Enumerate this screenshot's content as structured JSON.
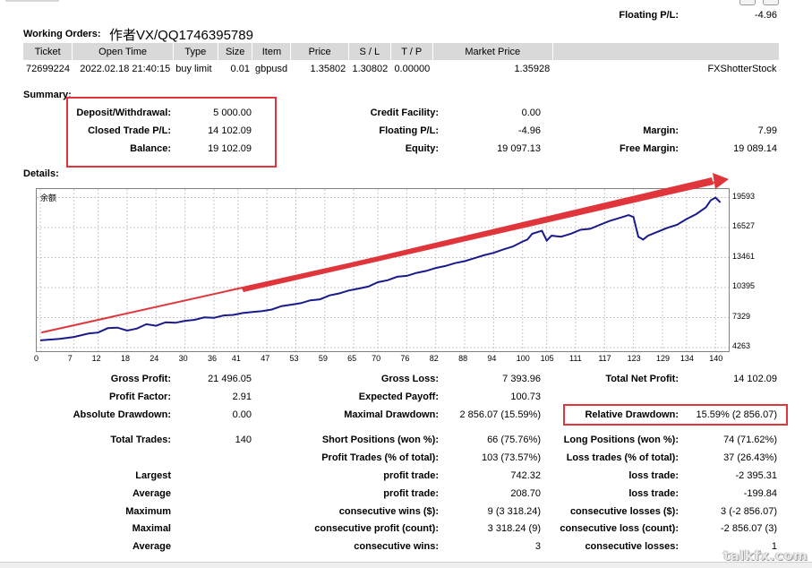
{
  "header": {
    "floating_pl_label": "Floating P/L:",
    "floating_pl_value": "-4.96"
  },
  "orders": {
    "title": "Working Orders:",
    "watermark_contact": "作者VX/QQ1746395789",
    "columns": [
      "Ticket",
      "Open Time",
      "Type",
      "Size",
      "Item",
      "Price",
      "S / L",
      "T / P",
      "Market Price"
    ],
    "row": {
      "ticket": "72699224",
      "open_time": "2022.02.18 21:40:15",
      "type": "buy limit",
      "size": "0.01",
      "item": "gbpusd",
      "price": "1.35802",
      "sl": "1.30802",
      "tp": "0.00000",
      "market_price": "1.35928",
      "comment": "FXShotterStock"
    }
  },
  "summary": {
    "title": "Summary:",
    "deposit_label": "Deposit/Withdrawal:",
    "deposit_value": "5 000.00",
    "closed_label": "Closed Trade P/L:",
    "closed_value": "14 102.09",
    "balance_label": "Balance:",
    "balance_value": "19 102.09",
    "credit_label": "Credit Facility:",
    "credit_value": "0.00",
    "floating_label": "Floating P/L:",
    "floating_value": "-4.96",
    "equity_label": "Equity:",
    "equity_value": "19 097.13",
    "margin_label": "Margin:",
    "margin_value": "7.99",
    "free_margin_label": "Free Margin:",
    "free_margin_value": "19 089.14"
  },
  "details": {
    "title": "Details:"
  },
  "chart_data": {
    "type": "line",
    "title": "余额",
    "x_ticks": [
      "0",
      "7",
      "12",
      "18",
      "24",
      "30",
      "36",
      "41",
      "47",
      "53",
      "59",
      "65",
      "70",
      "76",
      "82",
      "88",
      "94",
      "100",
      "105",
      "111",
      "117",
      "123",
      "129",
      "134",
      "140"
    ],
    "y_ticks": [
      "19593",
      "16527",
      "13461",
      "10395",
      "7329",
      "4263"
    ],
    "xlim": [
      0,
      142
    ],
    "ylim": [
      4263,
      20100
    ],
    "series": [
      {
        "name": "Balance",
        "x": [
          0,
          4,
          7,
          10,
          12,
          14,
          16,
          18,
          20,
          22,
          24,
          26,
          28,
          30,
          32,
          34,
          36,
          38,
          40,
          42,
          44,
          46,
          48,
          50,
          52,
          54,
          56,
          58,
          60,
          62,
          64,
          66,
          68,
          70,
          72,
          74,
          76,
          78,
          80,
          82,
          84,
          86,
          88,
          90,
          92,
          94,
          96,
          98,
          100,
          101,
          102,
          104,
          105,
          106,
          108,
          110,
          112,
          114,
          116,
          118,
          120,
          122,
          123,
          124,
          125,
          126,
          128,
          130,
          132,
          134,
          136,
          138,
          139,
          140,
          141
        ],
        "y": [
          5000,
          5150,
          5350,
          5700,
          5800,
          6250,
          6300,
          6000,
          6200,
          6650,
          6500,
          6850,
          6800,
          7000,
          7100,
          7350,
          7300,
          7550,
          7600,
          7800,
          7900,
          8000,
          8150,
          8500,
          8650,
          8800,
          9100,
          9200,
          9600,
          9800,
          10100,
          10300,
          10500,
          10950,
          11150,
          11500,
          11600,
          11900,
          12100,
          12400,
          12600,
          12900,
          13100,
          13400,
          13700,
          13950,
          14300,
          14600,
          15100,
          15300,
          15900,
          16200,
          15200,
          15700,
          15600,
          15900,
          16300,
          16400,
          16800,
          17200,
          17500,
          17800,
          17600,
          15600,
          15300,
          15700,
          16100,
          16500,
          16800,
          17400,
          17900,
          18600,
          19300,
          19600,
          19100
        ]
      }
    ]
  },
  "stats": {
    "gross_profit_label": "Gross Profit:",
    "gross_profit_value": "21 496.05",
    "gross_loss_label": "Gross Loss:",
    "gross_loss_value": "7 393.96",
    "total_net_label": "Total Net Profit:",
    "total_net_value": "14 102.09",
    "profit_factor_label": "Profit Factor:",
    "profit_factor_value": "2.91",
    "expected_payoff_label": "Expected Payoff:",
    "expected_payoff_value": "100.73",
    "abs_dd_label": "Absolute Drawdown:",
    "abs_dd_value": "0.00",
    "max_dd_label": "Maximal Drawdown:",
    "max_dd_value": "2 856.07 (15.59%)",
    "rel_dd_label": "Relative Drawdown:",
    "rel_dd_value": "15.59% (2 856.07)",
    "total_trades_label": "Total Trades:",
    "total_trades_value": "140",
    "short_label": "Short Positions (won %):",
    "short_value": "66 (75.76%)",
    "long_label": "Long Positions (won %):",
    "long_value": "74 (71.62%)",
    "profit_trades_label": "Profit Trades (% of total):",
    "profit_trades_value": "103 (73.57%)",
    "loss_trades_label": "Loss trades (% of total):",
    "loss_trades_value": "37 (26.43%)",
    "largest_label": "Largest",
    "largest_profit_label": "profit trade:",
    "largest_profit_value": "742.32",
    "largest_loss_label": "loss trade:",
    "largest_loss_value": "-2 395.31",
    "average_label": "Average",
    "average_profit_label": "profit trade:",
    "average_profit_value": "208.70",
    "average_loss_label": "loss trade:",
    "average_loss_value": "-199.84",
    "maximum_label": "Maximum",
    "max_cons_wins_label": "consecutive wins ($):",
    "max_cons_wins_value": "9 (3 318.24)",
    "max_cons_losses_label": "consecutive losses ($):",
    "max_cons_losses_value": "3 (-2 856.07)",
    "maximal_label": "Maximal",
    "maximal_profit_label": "consecutive profit (count):",
    "maximal_profit_value": "3 318.24 (9)",
    "maximal_loss_label": "consecutive loss (count):",
    "maximal_loss_value": "-2 856.07 (3)",
    "average2_label": "Average",
    "avg_cons_wins_label": "consecutive wins:",
    "avg_cons_wins_value": "3",
    "avg_cons_losses_label": "consecutive losses:",
    "avg_cons_losses_value": "1"
  },
  "site_watermark": "talkfx.com",
  "colors": {
    "highlight": "#e0353b",
    "line": "#1a1a8c",
    "header_bg": "#d9d9d9"
  }
}
